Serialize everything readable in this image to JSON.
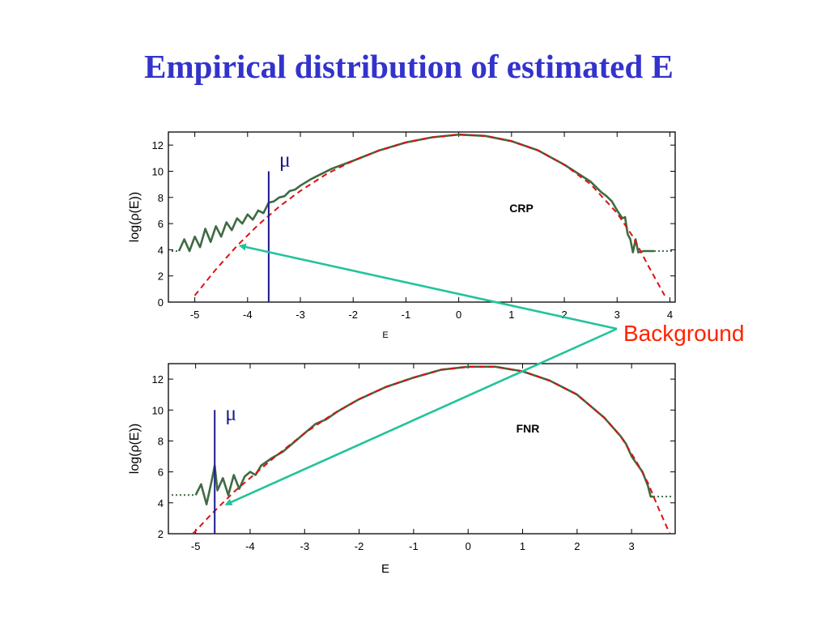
{
  "title": "Empirical distribution of estimated E",
  "colors": {
    "title": "#3333cc",
    "empirical": "#3f6b43",
    "fit": "#dd1111",
    "mu_line": "#1a1a8c",
    "arrow": "#22c39a",
    "background_label": "#ff2200"
  },
  "annotation": {
    "text": "Background"
  },
  "chart_data": [
    {
      "type": "line",
      "panel_label": "CRP",
      "xlabel": "E",
      "ylabel": "log(ρ(E))",
      "xlim": [
        -5.5,
        4.1
      ],
      "ylim": [
        0,
        13
      ],
      "xticks": [
        -5,
        -4,
        -3,
        -2,
        -1,
        0,
        1,
        2,
        3,
        4
      ],
      "yticks": [
        0,
        2,
        4,
        6,
        8,
        10,
        12
      ],
      "mu_label": "μ",
      "mu_x": -3.6,
      "mu_ymax": 10,
      "fit_curve": {
        "x": [
          -5.0,
          -4.6,
          -4.2,
          -3.8,
          -3.4,
          -3.0,
          -2.5,
          -2.0,
          -1.5,
          -1.0,
          -0.5,
          0.0,
          0.5,
          1.0,
          1.5,
          2.0,
          2.5,
          3.0,
          3.3,
          3.6,
          3.9
        ],
        "y": [
          0.5,
          2.5,
          4.3,
          5.9,
          7.3,
          8.5,
          9.8,
          10.8,
          11.6,
          12.2,
          12.6,
          12.8,
          12.7,
          12.3,
          11.6,
          10.5,
          9.0,
          6.8,
          5.0,
          2.7,
          0.5
        ]
      },
      "empirical": {
        "x": [
          -5.3,
          -5.2,
          -5.1,
          -5.0,
          -4.9,
          -4.8,
          -4.7,
          -4.6,
          -4.5,
          -4.4,
          -4.3,
          -4.2,
          -4.1,
          -4.0,
          -3.9,
          -3.8,
          -3.7,
          -3.6,
          -3.5,
          -3.4,
          -3.3,
          -3.2,
          -3.1,
          -3.0,
          -2.8,
          -2.6,
          -2.4,
          -2.2,
          -2.0,
          -1.5,
          -1.0,
          -0.5,
          0.0,
          0.5,
          1.0,
          1.5,
          2.0,
          2.5,
          2.7,
          2.8,
          2.9,
          3.0,
          3.1,
          3.15,
          3.2,
          3.25,
          3.3,
          3.35,
          3.4,
          3.5,
          3.7
        ],
        "y": [
          3.9,
          4.8,
          3.9,
          5.0,
          4.2,
          5.6,
          4.6,
          5.8,
          5.0,
          6.1,
          5.5,
          6.4,
          6.0,
          6.7,
          6.3,
          7.0,
          6.8,
          7.6,
          7.7,
          8.0,
          8.1,
          8.5,
          8.6,
          8.9,
          9.4,
          9.8,
          10.2,
          10.5,
          10.8,
          11.6,
          12.2,
          12.6,
          12.8,
          12.7,
          12.3,
          11.6,
          10.5,
          9.2,
          8.4,
          8.1,
          7.7,
          7.0,
          6.4,
          6.5,
          5.2,
          4.8,
          3.8,
          4.8,
          3.8,
          3.9,
          3.9
        ]
      }
    },
    {
      "type": "line",
      "panel_label": "FNR",
      "xlabel": "E",
      "ylabel": "log(ρ(E))",
      "xlim": [
        -5.5,
        3.8
      ],
      "ylim": [
        2,
        13
      ],
      "xticks": [
        -5,
        -4,
        -3,
        -2,
        -1,
        0,
        1,
        2,
        3
      ],
      "yticks": [
        2,
        4,
        6,
        8,
        10,
        12
      ],
      "mu_label": "μ",
      "mu_x": -4.65,
      "mu_ymax": 10,
      "fit_curve": {
        "x": [
          -5.05,
          -4.7,
          -4.3,
          -3.9,
          -3.5,
          -3.0,
          -2.5,
          -2.0,
          -1.5,
          -1.0,
          -0.5,
          0.0,
          0.5,
          1.0,
          1.5,
          2.0,
          2.5,
          2.8,
          3.1,
          3.3,
          3.5,
          3.7
        ],
        "y": [
          2.0,
          3.3,
          4.7,
          5.9,
          7.1,
          8.5,
          9.7,
          10.7,
          11.5,
          12.1,
          12.6,
          12.8,
          12.8,
          12.5,
          11.9,
          11.0,
          9.5,
          8.3,
          6.6,
          5.3,
          3.6,
          2.0
        ]
      },
      "empirical": {
        "x": [
          -5.0,
          -4.9,
          -4.8,
          -4.7,
          -4.65,
          -4.6,
          -4.5,
          -4.4,
          -4.3,
          -4.2,
          -4.1,
          -4.0,
          -3.9,
          -3.8,
          -3.6,
          -3.4,
          -3.2,
          -3.0,
          -2.8,
          -2.6,
          -2.4,
          -2.2,
          -2.0,
          -1.5,
          -1.0,
          -0.5,
          0.0,
          0.5,
          1.0,
          1.5,
          2.0,
          2.5,
          2.8,
          2.9,
          3.0,
          3.1,
          3.2,
          3.3,
          3.35,
          3.4
        ],
        "y": [
          4.5,
          5.2,
          3.9,
          5.5,
          6.4,
          4.8,
          5.6,
          4.5,
          5.8,
          4.9,
          5.7,
          6.0,
          5.8,
          6.4,
          6.9,
          7.3,
          7.9,
          8.5,
          9.1,
          9.4,
          9.9,
          10.3,
          10.7,
          11.5,
          12.1,
          12.6,
          12.8,
          12.8,
          12.5,
          11.9,
          11.0,
          9.5,
          8.3,
          7.8,
          7.0,
          6.5,
          6.0,
          5.1,
          4.4,
          4.4
        ]
      }
    }
  ]
}
